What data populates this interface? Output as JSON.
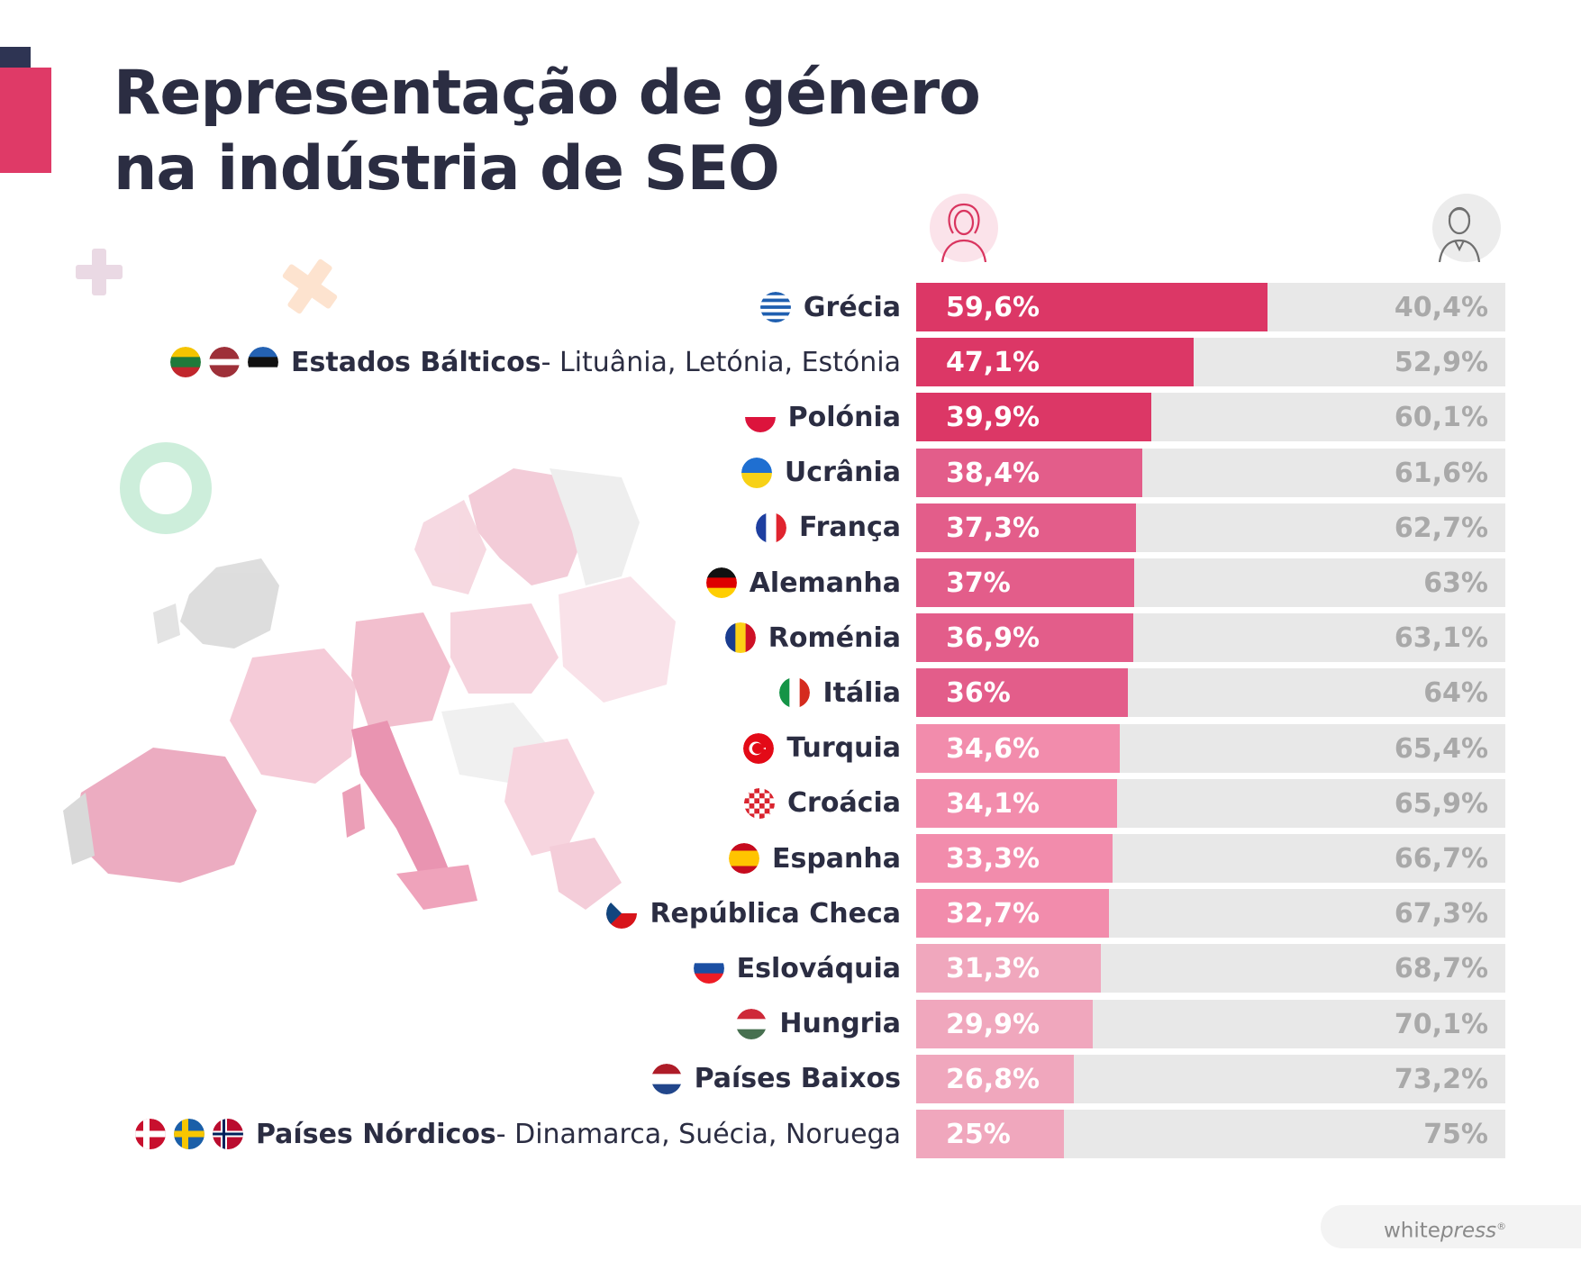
{
  "title": [
    "Representação de género",
    "na indústria de SEO"
  ],
  "icons": {
    "female": "woman-avatar-icon",
    "male": "man-avatar-icon"
  },
  "colors": {
    "female_strong": "#dc3766",
    "female_medium": "#e35d8a",
    "female_light": "#f28cac",
    "female_pale": "#f0a7bd",
    "male_bg": "#e8e8e8",
    "male_text": "#a9a9a9",
    "label_text": "#2b2d42"
  },
  "chart_data": {
    "type": "bar",
    "orientation": "horizontal-stacked-100",
    "title": "Representação de género na indústria de SEO",
    "series_names": [
      "women",
      "men"
    ],
    "rows": [
      {
        "name": "Grécia",
        "sub": "",
        "flags": [
          "gr"
        ],
        "female": 59.6,
        "male": 40.4,
        "female_label": "59,6%",
        "male_label": "40,4%",
        "tone": "female_strong"
      },
      {
        "name": "Estados Bálticos",
        "sub": "- Lituânia, Letónia, Estónia",
        "flags": [
          "lt",
          "lv",
          "ee"
        ],
        "female": 47.1,
        "male": 52.9,
        "female_label": "47,1%",
        "male_label": "52,9%",
        "tone": "female_strong"
      },
      {
        "name": "Polónia",
        "sub": "",
        "flags": [
          "pl"
        ],
        "female": 39.9,
        "male": 60.1,
        "female_label": "39,9%",
        "male_label": "60,1%",
        "tone": "female_strong"
      },
      {
        "name": "Ucrânia",
        "sub": "",
        "flags": [
          "ua"
        ],
        "female": 38.4,
        "male": 61.6,
        "female_label": "38,4%",
        "male_label": "61,6%",
        "tone": "female_medium"
      },
      {
        "name": "França",
        "sub": "",
        "flags": [
          "fr"
        ],
        "female": 37.3,
        "male": 62.7,
        "female_label": "37,3%",
        "male_label": "62,7%",
        "tone": "female_medium"
      },
      {
        "name": "Alemanha",
        "sub": "",
        "flags": [
          "de"
        ],
        "female": 37,
        "male": 63,
        "female_label": "37%",
        "male_label": "63%",
        "tone": "female_medium"
      },
      {
        "name": "Roménia",
        "sub": "",
        "flags": [
          "ro"
        ],
        "female": 36.9,
        "male": 63.1,
        "female_label": "36,9%",
        "male_label": "63,1%",
        "tone": "female_medium"
      },
      {
        "name": "Itália",
        "sub": "",
        "flags": [
          "it"
        ],
        "female": 36,
        "male": 64,
        "female_label": "36%",
        "male_label": "64%",
        "tone": "female_medium"
      },
      {
        "name": "Turquia",
        "sub": "",
        "flags": [
          "tr"
        ],
        "female": 34.6,
        "male": 65.4,
        "female_label": "34,6%",
        "male_label": "65,4%",
        "tone": "female_light"
      },
      {
        "name": "Croácia",
        "sub": "",
        "flags": [
          "hr"
        ],
        "female": 34.1,
        "male": 65.9,
        "female_label": "34,1%",
        "male_label": "65,9%",
        "tone": "female_light"
      },
      {
        "name": "Espanha",
        "sub": "",
        "flags": [
          "es"
        ],
        "female": 33.3,
        "male": 66.7,
        "female_label": "33,3%",
        "male_label": "66,7%",
        "tone": "female_light"
      },
      {
        "name": "República Checa",
        "sub": "",
        "flags": [
          "cz"
        ],
        "female": 32.7,
        "male": 67.3,
        "female_label": "32,7%",
        "male_label": "67,3%",
        "tone": "female_light"
      },
      {
        "name": "Eslováquia",
        "sub": "",
        "flags": [
          "sk"
        ],
        "female": 31.3,
        "male": 68.7,
        "female_label": "31,3%",
        "male_label": "68,7%",
        "tone": "female_pale"
      },
      {
        "name": "Hungria",
        "sub": "",
        "flags": [
          "hu"
        ],
        "female": 29.9,
        "male": 70.1,
        "female_label": "29,9%",
        "male_label": "70,1%",
        "tone": "female_pale"
      },
      {
        "name": "Países Baixos",
        "sub": "",
        "flags": [
          "nl"
        ],
        "female": 26.8,
        "male": 73.2,
        "female_label": "26,8%",
        "male_label": "73,2%",
        "tone": "female_pale"
      },
      {
        "name": "Países Nórdicos",
        "sub": "- Dinamarca, Suécia, Noruega",
        "flags": [
          "dk",
          "se",
          "no"
        ],
        "female": 25,
        "male": 75,
        "female_label": "25%",
        "male_label": "75%",
        "tone": "female_pale"
      }
    ]
  },
  "logo": {
    "main": "white",
    "italic": "press",
    "mark": "®"
  }
}
